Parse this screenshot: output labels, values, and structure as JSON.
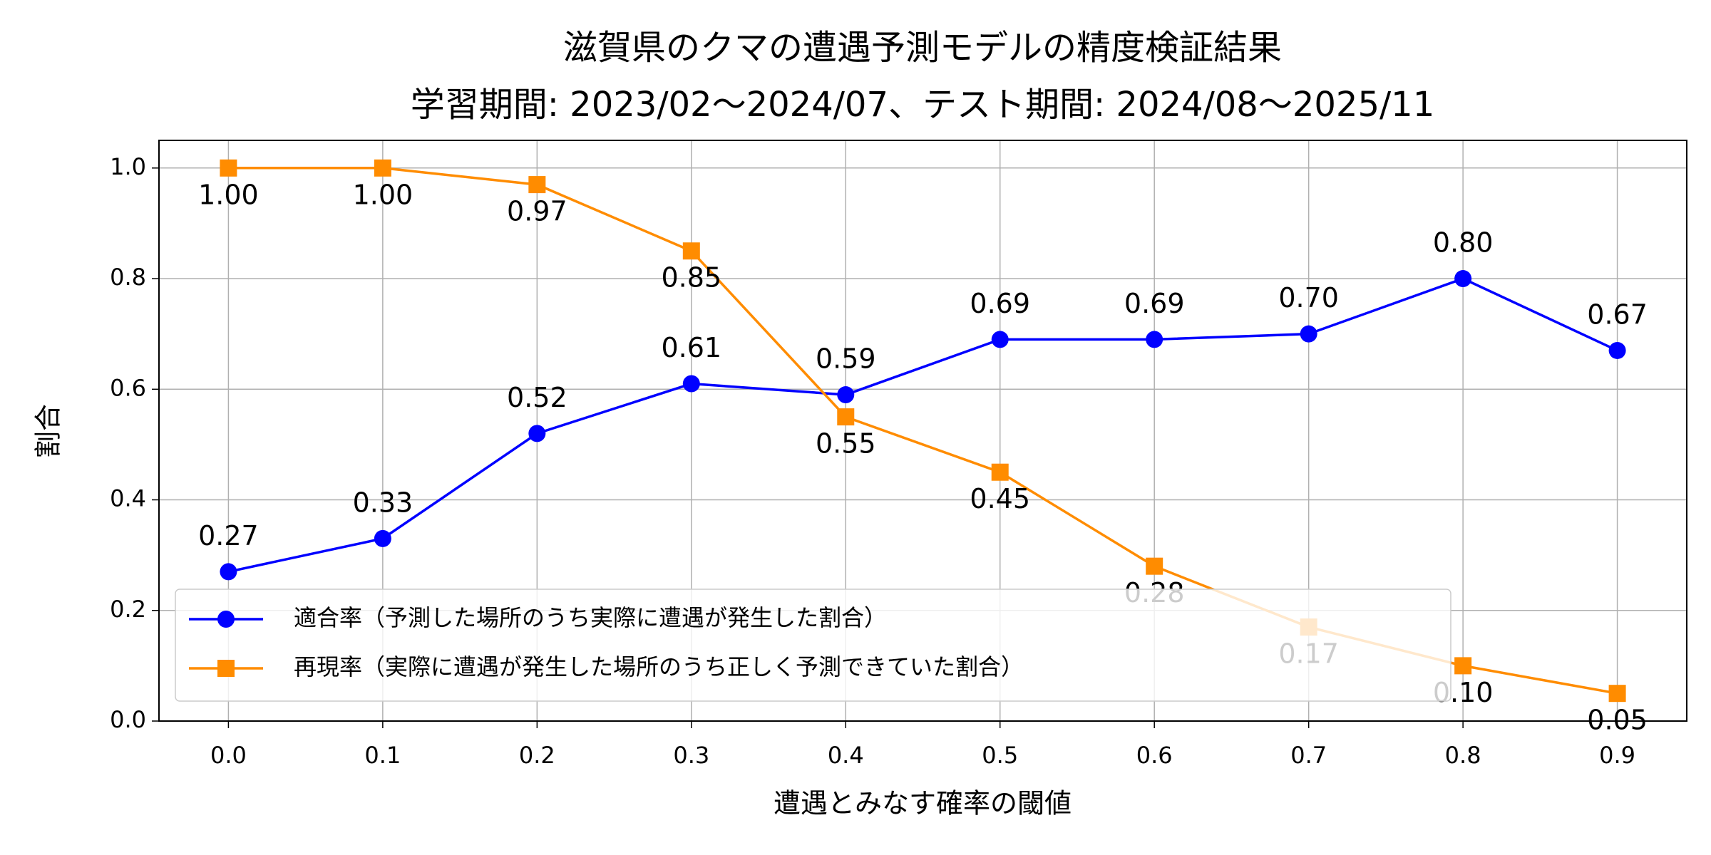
{
  "chart_data": {
    "type": "line",
    "title": "滋賀県のクマの遭遇予測モデルの精度検証結果",
    "subtitle": "学習期間: 2023/02〜2024/07、テスト期間: 2024/08〜2025/11",
    "x_label": "遭遇とみなす確率の閾値",
    "y_label": "割合",
    "x": [
      0,
      0.1,
      0.2,
      0.3,
      0.4,
      0.5,
      0.6,
      0.7,
      0.8,
      0.9
    ],
    "series": [
      {
        "name": "適合率（予測した場所のうち実際に遭遇が発生した割合）",
        "color": "#0000ff",
        "marker": "circle",
        "values": [
          0.27,
          0.33,
          0.52,
          0.61,
          0.59,
          0.69,
          0.69,
          0.7,
          0.8,
          0.67
        ],
        "value_labels": [
          "0.27",
          "0.33",
          "0.52",
          "0.61",
          "0.59",
          "0.69",
          "0.69",
          "0.70",
          "0.80",
          "0.67"
        ]
      },
      {
        "name": "再現率（実際に遭遇が発生した場所のうち正しく予測できていた割合）",
        "color": "#ff8c00",
        "marker": "square",
        "values": [
          1.0,
          1.0,
          0.97,
          0.85,
          0.55,
          0.45,
          0.28,
          0.17,
          0.1,
          0.05
        ],
        "value_labels": [
          "1.00",
          "1.00",
          "0.97",
          "0.85",
          "0.55",
          "0.45",
          "0.28",
          "0.17",
          "0.10",
          "0.05"
        ]
      }
    ],
    "xlim": [
      -0.045,
      0.945
    ],
    "ylim": [
      0,
      1.05
    ],
    "xticks": [
      {
        "value": 0,
        "label": "0.0"
      },
      0.1,
      0.2,
      0.3,
      0.4,
      0.5,
      0.6,
      0.7,
      0.8,
      0.9
    ],
    "yticks": [
      {
        "value": 0,
        "label": "0.0"
      },
      0.2,
      0.4,
      0.6,
      0.8,
      {
        "value": 1,
        "label": "1.0"
      }
    ],
    "grid": true,
    "legend": "lower left"
  }
}
